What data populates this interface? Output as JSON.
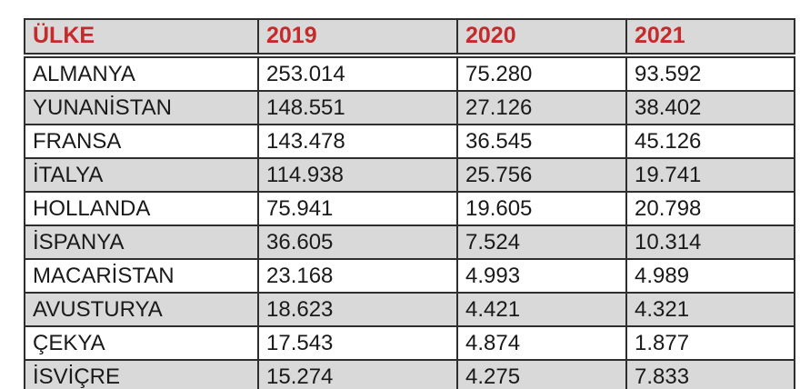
{
  "chart_data": {
    "type": "table",
    "columns": [
      "ÜLKE",
      "2019",
      "2020",
      "2021"
    ],
    "rows": [
      {
        "country": "ALMANYA",
        "values": [
          "253.014",
          "75.280",
          "93.592"
        ]
      },
      {
        "country": "YUNANİSTAN",
        "values": [
          "148.551",
          "27.126",
          "38.402"
        ]
      },
      {
        "country": "FRANSA",
        "values": [
          "143.478",
          "36.545",
          "45.126"
        ]
      },
      {
        "country": "İTALYA",
        "values": [
          "114.938",
          "25.756",
          "19.741"
        ]
      },
      {
        "country": "HOLLANDA",
        "values": [
          "75.941",
          "19.605",
          "20.798"
        ]
      },
      {
        "country": "İSPANYA",
        "values": [
          "36.605",
          "7.524",
          "10.314"
        ]
      },
      {
        "country": "MACARİSTAN",
        "values": [
          "23.168",
          "4.993",
          "4.989"
        ]
      },
      {
        "country": "AVUSTURYA",
        "values": [
          "18.623",
          "4.421",
          "4.321"
        ]
      },
      {
        "country": "ÇEKYA",
        "values": [
          "17.543",
          "4.874",
          "1.877"
        ]
      },
      {
        "country": "İSVİÇRE",
        "values": [
          "15.274",
          "4.275",
          "7.833"
        ]
      }
    ],
    "layout_hints": {
      "striped_rows": true,
      "grid": true
    }
  },
  "colors": {
    "header_text": "#c62a2a",
    "row_shaded": "#d9d9d9",
    "row_plain": "#ffffff",
    "border": "#2e2e2e",
    "body_text": "#1a1a1a",
    "background": "#ffffff"
  }
}
